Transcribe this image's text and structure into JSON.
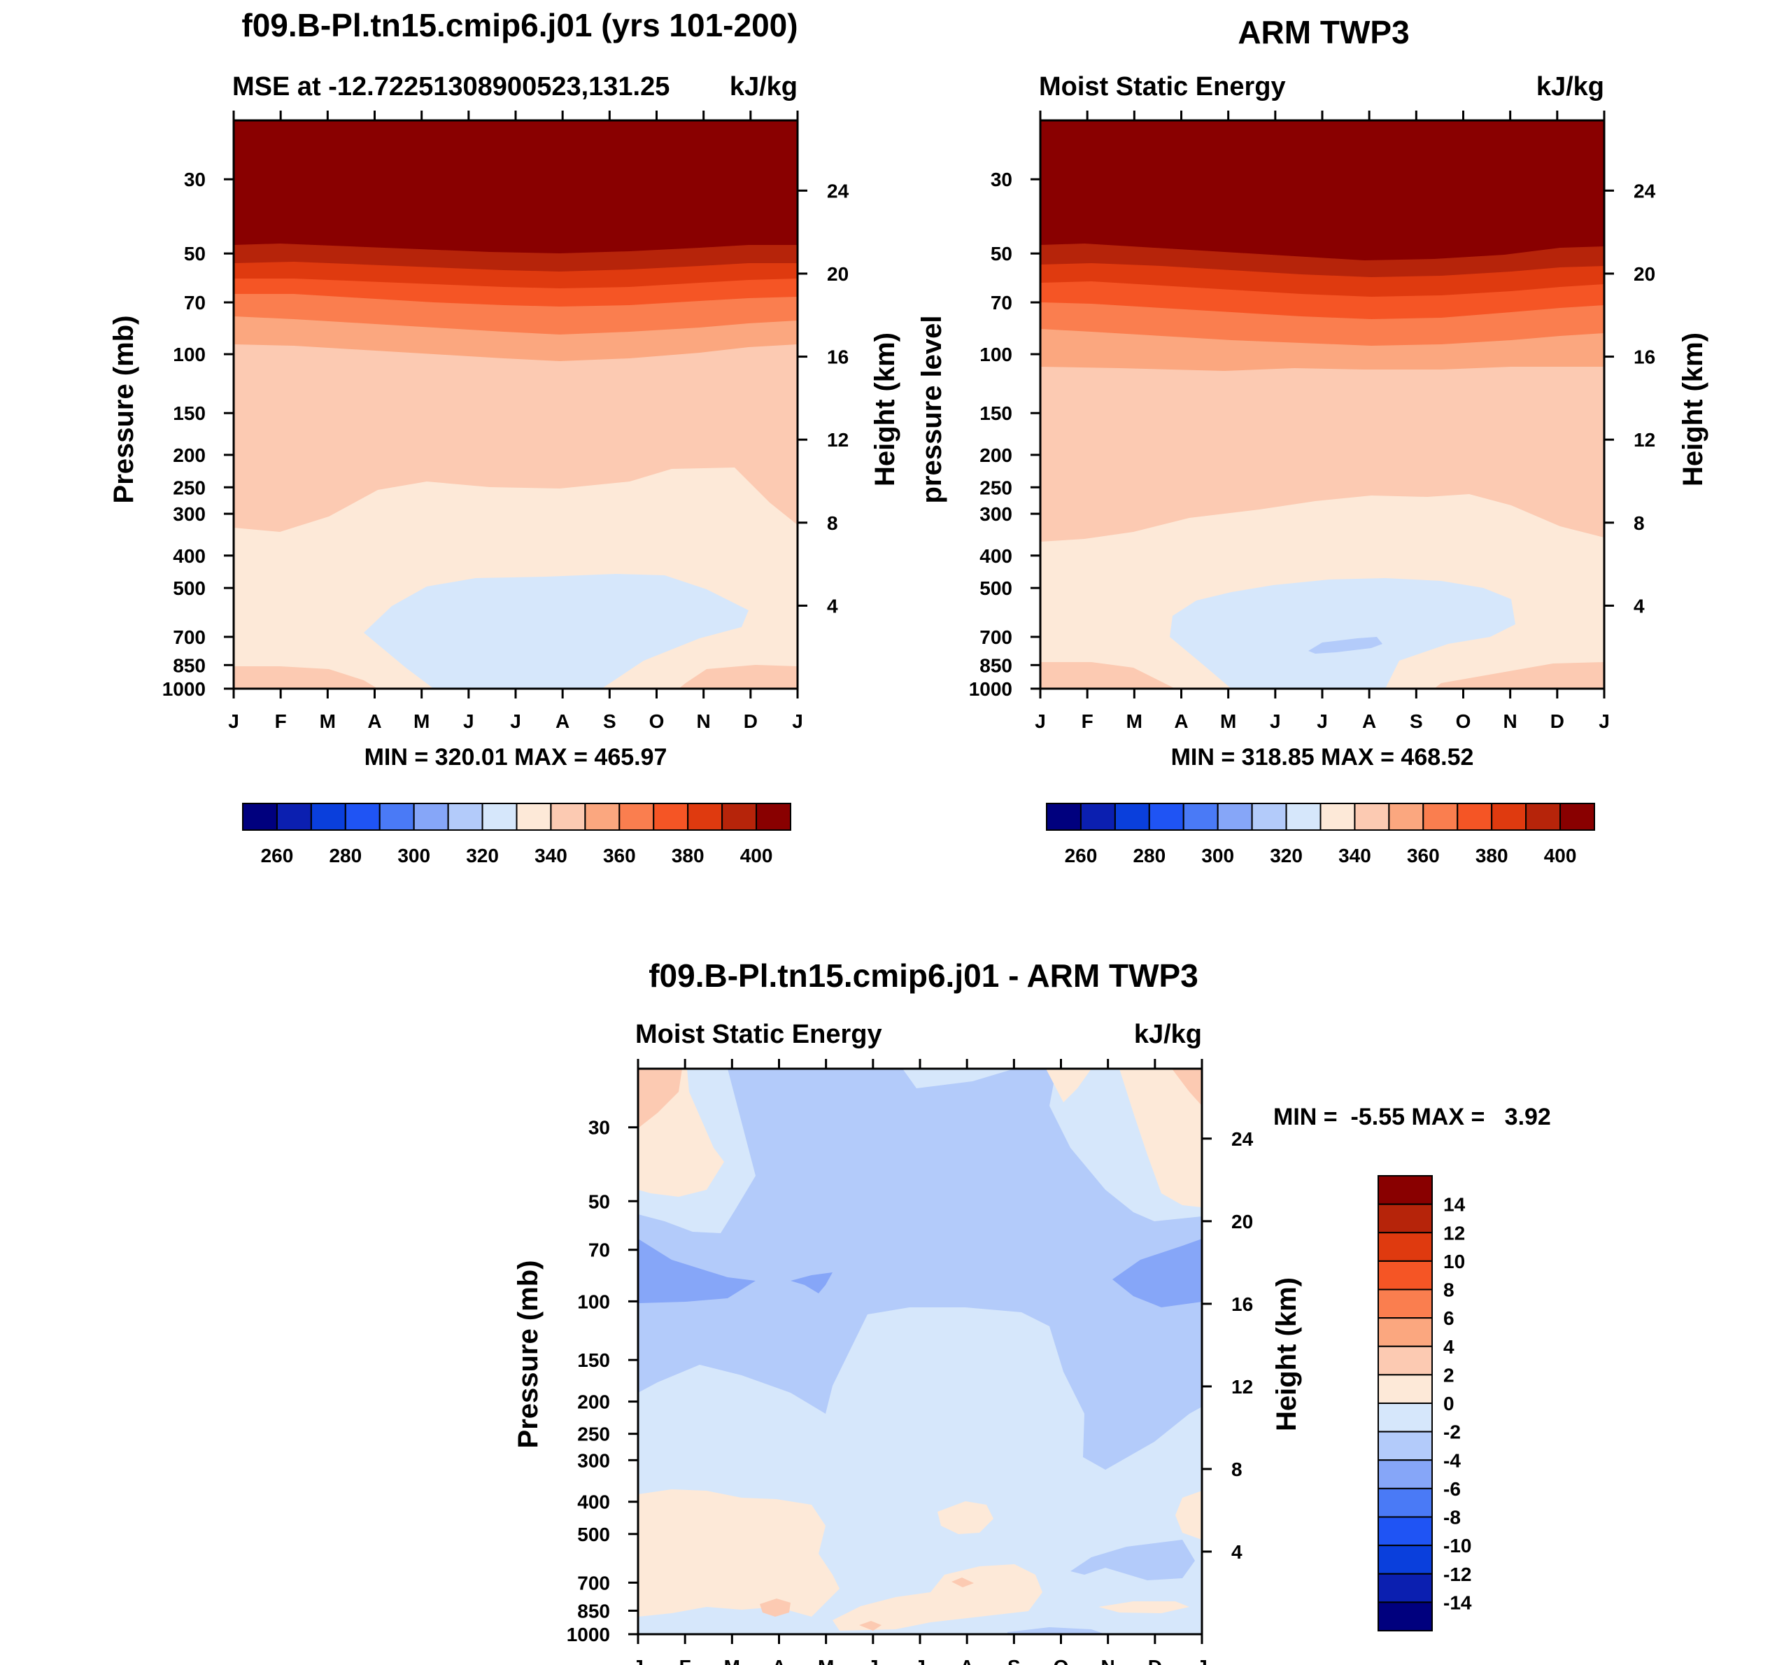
{
  "figure": {
    "panels": {
      "model": {
        "main_title": "f09.B-Pl.tn15.cmip6.j01 (yrs 101-200)",
        "left_string": "MSE at -12.72251308900523,131.25",
        "right_string": "kJ/kg",
        "y_label": "Pressure (mb)",
        "y2_label": "Height (km)",
        "stats": "MIN = 320.01 MAX = 465.97"
      },
      "obs": {
        "main_title": "ARM TWP3",
        "left_string": "Moist Static Energy",
        "right_string": "kJ/kg",
        "y_label": "pressure level",
        "y2_label": "Height (km)",
        "stats": "MIN = 318.85 MAX = 468.52"
      },
      "diff": {
        "main_title": "f09.B-Pl.tn15.cmip6.j01 - ARM TWP3",
        "left_string": "Moist Static Energy",
        "right_string": "kJ/kg",
        "y_label": "Pressure (mb)",
        "y2_label": "Height (km)",
        "stats": "MIN =  -5.55 MAX =   3.92"
      }
    }
  },
  "chart_data": [
    {
      "id": "model",
      "type": "contour",
      "title": "f09.B-Pl.tn15.cmip6.j01 (yrs 101-200)",
      "subtitle_left": "MSE at -12.72251308900523,131.25",
      "subtitle_right": "kJ/kg",
      "x_ticks": [
        "J",
        "F",
        "M",
        "A",
        "M",
        "J",
        "J",
        "A",
        "S",
        "O",
        "N",
        "D",
        "J"
      ],
      "y_ticks": [
        "30",
        "50",
        "70",
        "100",
        "150",
        "200",
        "250",
        "300",
        "400",
        "500",
        "700",
        "850",
        "1000"
      ],
      "y_range_mb": [
        1000,
        20
      ],
      "y2_ticks_km": [
        "24",
        "20",
        "16",
        "12",
        "8",
        "4"
      ],
      "ylabel": "Pressure (mb)",
      "y2label": "Height (km)",
      "min": 320.01,
      "max": 465.97,
      "colorbar": {
        "orientation": "horizontal",
        "labels": [
          "260",
          "280",
          "300",
          "320",
          "340",
          "360",
          "380",
          "400"
        ],
        "colors": [
          "#00007e",
          "#0b1fb0",
          "#0a3fdc",
          "#1f54f4",
          "#4a7af6",
          "#86a6f8",
          "#b3cbfa",
          "#d6e7fb",
          "#fde9d8",
          "#fccab2",
          "#fba77f",
          "#fa7e4f",
          "#f55525",
          "#df3a0f",
          "#b6240a",
          "#890000"
        ]
      }
    },
    {
      "id": "obs",
      "type": "contour",
      "title": "ARM TWP3",
      "subtitle_left": "Moist Static Energy",
      "subtitle_right": "kJ/kg",
      "x_ticks": [
        "J",
        "F",
        "M",
        "A",
        "M",
        "J",
        "J",
        "A",
        "S",
        "O",
        "N",
        "D",
        "J"
      ],
      "y_ticks": [
        "30",
        "50",
        "70",
        "100",
        "150",
        "200",
        "250",
        "300",
        "400",
        "500",
        "700",
        "850",
        "1000"
      ],
      "y_range_mb": [
        1000,
        20
      ],
      "y2_ticks_km": [
        "24",
        "20",
        "16",
        "12",
        "8",
        "4"
      ],
      "ylabel": "pressure level",
      "y2label": "Height (km)",
      "min": 318.85,
      "max": 468.52,
      "colorbar": {
        "orientation": "horizontal",
        "labels": [
          "260",
          "280",
          "300",
          "320",
          "340",
          "360",
          "380",
          "400"
        ],
        "colors": [
          "#00007e",
          "#0b1fb0",
          "#0a3fdc",
          "#1f54f4",
          "#4a7af6",
          "#86a6f8",
          "#b3cbfa",
          "#d6e7fb",
          "#fde9d8",
          "#fccab2",
          "#fba77f",
          "#fa7e4f",
          "#f55525",
          "#df3a0f",
          "#b6240a",
          "#890000"
        ]
      }
    },
    {
      "id": "diff",
      "type": "contour",
      "title": "f09.B-Pl.tn15.cmip6.j01 - ARM TWP3",
      "subtitle_left": "Moist Static Energy",
      "subtitle_right": "kJ/kg",
      "x_ticks": [
        "J",
        "F",
        "M",
        "A",
        "M",
        "J",
        "J",
        "A",
        "S",
        "O",
        "N",
        "D",
        "J"
      ],
      "y_ticks": [
        "30",
        "50",
        "70",
        "100",
        "150",
        "200",
        "250",
        "300",
        "400",
        "500",
        "700",
        "850",
        "1000"
      ],
      "y_range_mb": [
        1000,
        20
      ],
      "y2_ticks_km": [
        "24",
        "20",
        "16",
        "12",
        "8",
        "4"
      ],
      "ylabel": "Pressure (mb)",
      "y2label": "Height (km)",
      "min": -5.55,
      "max": 3.92,
      "colorbar": {
        "orientation": "vertical",
        "labels": [
          "14",
          "12",
          "10",
          "8",
          "6",
          "4",
          "2",
          "0",
          "-2",
          "-4",
          "-6",
          "-8",
          "-10",
          "-12",
          "-14"
        ],
        "colors": [
          "#890000",
          "#b6240a",
          "#df3a0f",
          "#f55525",
          "#fa7e4f",
          "#fba77f",
          "#fccab2",
          "#fde9d8",
          "#d6e7fb",
          "#b3cbfa",
          "#86a6f8",
          "#4a7af6",
          "#1f54f4",
          "#0a3fdc",
          "#0b1fb0",
          "#00007e"
        ]
      }
    }
  ]
}
